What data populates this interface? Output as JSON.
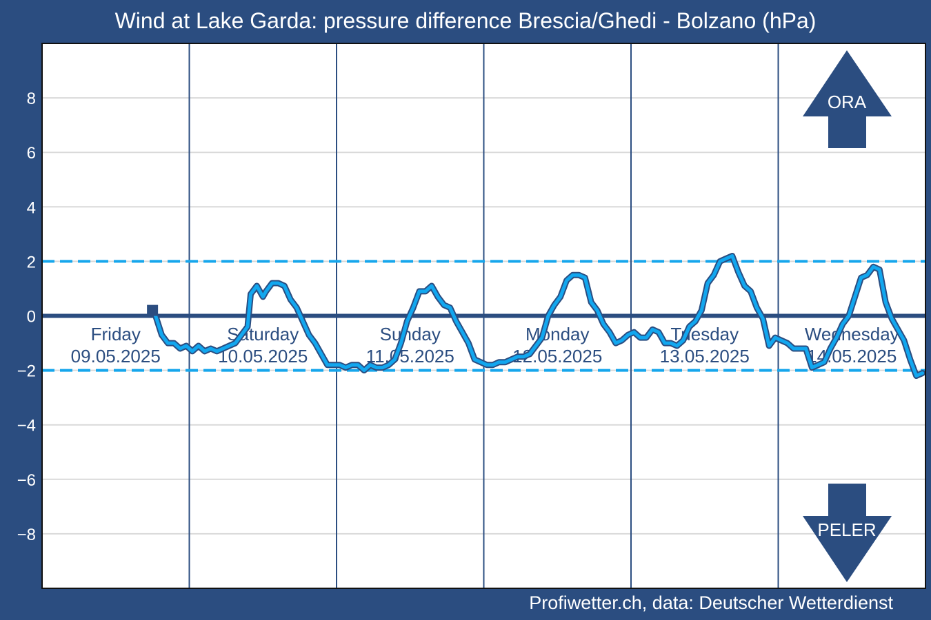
{
  "chart_data": {
    "type": "line",
    "title": "Wind at Lake Garda: pressure difference Brescia/Ghedi - Bolzano (hPa)",
    "credit": "Profiwetter.ch, data: Deutscher Wetterdienst",
    "ylim": [
      -10,
      10
    ],
    "yticks": [
      8,
      6,
      4,
      2,
      0,
      -2,
      -4,
      -6,
      -8
    ],
    "ytick_labels": [
      "8",
      "6",
      "4",
      "2",
      "0",
      "−2",
      "−4",
      "−6",
      "−8"
    ],
    "grid": true,
    "x_unit": "hours since 09.05.2025 00:00",
    "xlim": [
      -12,
      132
    ],
    "day_labels": [
      {
        "day": "Friday",
        "date": "09.05.2025"
      },
      {
        "day": "Saturday",
        "date": "10.05.2025"
      },
      {
        "day": "Sunday",
        "date": "11.05.2025"
      },
      {
        "day": "Monday",
        "date": "12.05.2025"
      },
      {
        "day": "Tuesday",
        "date": "13.05.2025"
      },
      {
        "day": "Wednesday",
        "date": "14.05.2025"
      }
    ],
    "thresholds": [
      2,
      -2
    ],
    "annotations": {
      "up": "ORA",
      "down": "PELER"
    },
    "current_marker": {
      "x": 6,
      "y": 0.2
    },
    "series": [
      {
        "x": [
          6,
          6.5,
          7.5,
          8.5,
          9.5,
          10.5,
          11.5,
          12.5,
          13.5,
          14.5,
          15.5,
          16.5,
          17.5,
          18.5,
          19.5,
          20.5,
          21.5,
          22,
          23,
          24,
          24.5,
          25.5,
          26.5,
          27.5,
          28.5,
          29.5,
          30.5,
          31.5,
          32.5,
          33.5,
          34.5,
          35.5,
          36.5,
          37.5,
          38.5,
          39.5,
          40.5,
          41.5,
          42.5,
          43.5,
          44.5,
          45.5,
          46.5,
          47.5,
          48.5,
          49.5,
          50.5,
          51.5,
          52.5,
          53.5,
          54.5,
          55.5,
          56.5,
          57.5,
          58.5,
          59.5,
          60.5,
          61.5,
          62.5,
          63.5,
          64.5,
          65.5,
          66.5,
          67.5,
          68.5,
          69.5,
          70.5,
          71.5,
          72.5,
          73.5,
          74.5,
          75.5,
          76.5,
          77.5,
          78.5,
          79.5,
          80.5,
          81.5,
          82.5,
          83.5,
          84.5,
          85.5,
          86.5,
          87.5,
          88.5,
          89.5,
          90.5,
          91.5,
          92.5,
          93.5,
          94.5,
          95.5,
          96.5,
          97.5,
          98.5,
          99.5,
          100.5,
          101.5,
          102.5,
          103.5,
          104.5,
          105.5,
          106.5,
          107.5,
          108.5,
          109.5,
          110.5,
          111.5,
          112.5,
          113.5,
          114.5,
          115.5,
          116.5,
          117.5,
          118.5,
          119.5,
          120.5,
          121.5,
          122.5,
          123.5,
          124.5,
          125.5,
          126.5,
          127.5,
          128.5,
          129.5,
          130.5,
          131.5
        ],
        "y": [
          0.2,
          0,
          -0.7,
          -1,
          -1,
          -1.2,
          -1.1,
          -1.3,
          -1.1,
          -1.3,
          -1.2,
          -1.3,
          -1.2,
          -1.1,
          -1,
          -0.7,
          -0.4,
          0.8,
          1.1,
          0.7,
          0.9,
          1.2,
          1.2,
          1.1,
          0.6,
          0.3,
          -0.2,
          -0.7,
          -1,
          -1.4,
          -1.8,
          -1.8,
          -1.8,
          -1.9,
          -1.8,
          -1.8,
          -2,
          -1.8,
          -1.9,
          -1.9,
          -1.8,
          -1.6,
          -1,
          -0.2,
          0.3,
          0.9,
          0.9,
          1.1,
          0.7,
          0.4,
          0.3,
          -0.2,
          -0.6,
          -1,
          -1.6,
          -1.7,
          -1.8,
          -1.8,
          -1.7,
          -1.7,
          -1.6,
          -1.5,
          -1.5,
          -1.4,
          -1.1,
          -0.8,
          0,
          0.4,
          0.7,
          1.3,
          1.5,
          1.5,
          1.4,
          0.5,
          0.2,
          -0.3,
          -0.6,
          -1,
          -0.9,
          -0.7,
          -0.6,
          -0.8,
          -0.8,
          -0.5,
          -0.6,
          -1,
          -1,
          -1.1,
          -0.9,
          -0.4,
          -0.2,
          0.2,
          1.2,
          1.5,
          2,
          2.1,
          2.2,
          1.6,
          1.1,
          0.9,
          0.3,
          -0.1,
          -1.1,
          -0.8,
          -0.9,
          -1,
          -1.2,
          -1.2,
          -1.2,
          -1.9,
          -1.8,
          -1.7,
          -1.2,
          -0.8,
          -0.3,
          0,
          0.7,
          1.4,
          1.5,
          1.8,
          1.7,
          0.5,
          -0.1,
          -0.5,
          -0.9,
          -1.6,
          -2.2,
          -2.1
        ]
      }
    ]
  }
}
